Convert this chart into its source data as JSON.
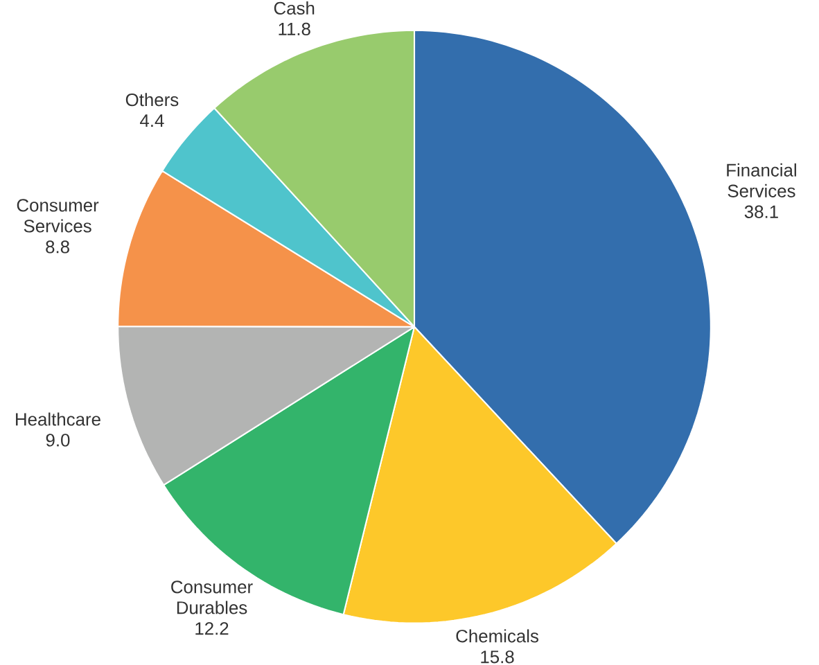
{
  "chart_data": {
    "type": "pie",
    "categories": [
      "Financial Services",
      "Chemicals",
      "Consumer Durables",
      "Healthcare",
      "Consumer Services",
      "Others",
      "Cash"
    ],
    "values": [
      38.1,
      15.8,
      12.2,
      9.0,
      8.8,
      4.4,
      11.8
    ],
    "value_labels": [
      "38.1",
      "15.8",
      "12.2",
      "9.0",
      "8.8",
      "4.4",
      "11.8"
    ],
    "colors": [
      "#336ead",
      "#fdc82a",
      "#33b46b",
      "#b3b4b3",
      "#f5924a",
      "#4fc4cc",
      "#98cb6d"
    ]
  }
}
